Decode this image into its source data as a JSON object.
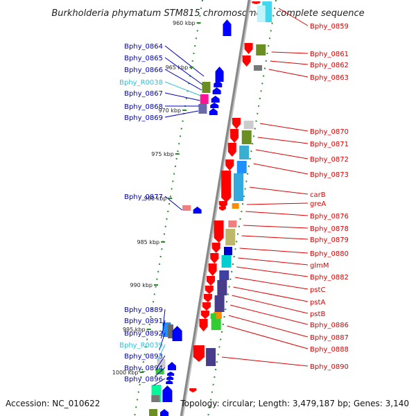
{
  "title": "Burkholderia phymatum STM815 chromosome 1, complete sequence",
  "footer": {
    "accession": "Accession: NC_010622",
    "topology": "Topology: circular; Length: 3,479,187 bp; Genes: 3,140"
  },
  "colors": {
    "right_label": "#e00000",
    "left_label": "#0000c0",
    "rna_label": "#30c0d8",
    "backbone": "#888888",
    "tick": "#2a8a2a"
  },
  "scale_marks": [
    "960 kbp",
    "965 kbp",
    "970 kbp",
    "975 kbp",
    "980 kbp",
    "985 kbp",
    "990 kbp",
    "995 kbp",
    "1000 kbp"
  ],
  "right_labels": [
    "Bphy_0859",
    "Bphy_0861",
    "Bphy_0862",
    "Bphy_0863",
    "Bphy_0870",
    "Bphy_0871",
    "Bphy_0872",
    "Bphy_0873",
    "carB",
    "greA",
    "Bphy_0876",
    "Bphy_0878",
    "Bphy_0879",
    "Bphy_0880",
    "glmM",
    "Bphy_0882",
    "pstC",
    "pstA",
    "pstB",
    "Bphy_0886",
    "Bphy_0887",
    "Bphy_0888",
    "Bphy_0890"
  ],
  "left_labels": [
    "Bphy_0864",
    "Bphy_0865",
    "Bphy_0866",
    "Bphy_R0038",
    "Bphy_0867",
    "Bphy_0868",
    "Bphy_0869",
    "Bphy_0877",
    "Bphy_0889",
    "Bphy_0891",
    "Bphy_0892",
    "Bphy_R0039",
    "Bphy_0893",
    "Bphy_0894",
    "Bphy_0896"
  ],
  "rna_genes": [
    "Bphy_R0038",
    "Bphy_R0039"
  ]
}
